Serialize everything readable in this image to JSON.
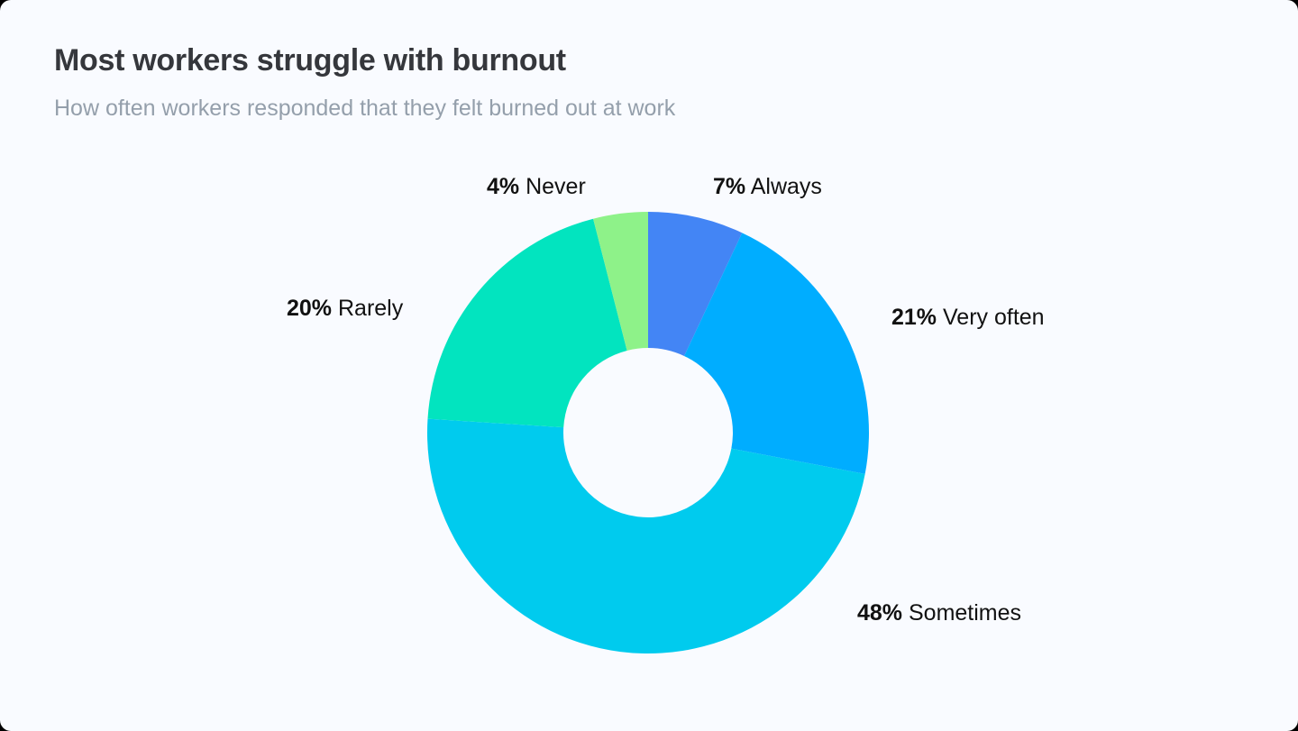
{
  "header": {
    "title": "Most workers struggle with burnout",
    "subtitle": "How often workers responded that they felt burned out at work"
  },
  "labels": {
    "always": {
      "pct": "7%",
      "name": "Always"
    },
    "very_often": {
      "pct": "21%",
      "name": "Very often"
    },
    "sometimes": {
      "pct": "48%",
      "name": "Sometimes"
    },
    "rarely": {
      "pct": "20%",
      "name": "Rarely"
    },
    "never": {
      "pct": "4%",
      "name": "Never"
    }
  },
  "colors": {
    "background": "#f9fbff",
    "title": "#35373c",
    "subtitle": "#949fab",
    "always": "#4385f5",
    "very_often": "#00adff",
    "sometimes": "#00cbee",
    "rarely": "#02e4bf",
    "never": "#8ef289"
  },
  "chart_data": {
    "type": "pie",
    "variant": "donut",
    "title": "Most workers struggle with burnout",
    "subtitle": "How often workers responded that they felt burned out at work",
    "categories": [
      "Always",
      "Very often",
      "Sometimes",
      "Rarely",
      "Never"
    ],
    "values": [
      7,
      21,
      48,
      20,
      4
    ],
    "unit": "%",
    "colors": [
      "#4385f5",
      "#00adff",
      "#00cbee",
      "#02e4bf",
      "#8ef289"
    ],
    "start_angle": "12 o'clock",
    "direction": "clockwise",
    "legend": "none (direct labels outside slices)",
    "center": [
      719,
      480
    ],
    "outer_radius": 245,
    "inner_radius": 94
  }
}
